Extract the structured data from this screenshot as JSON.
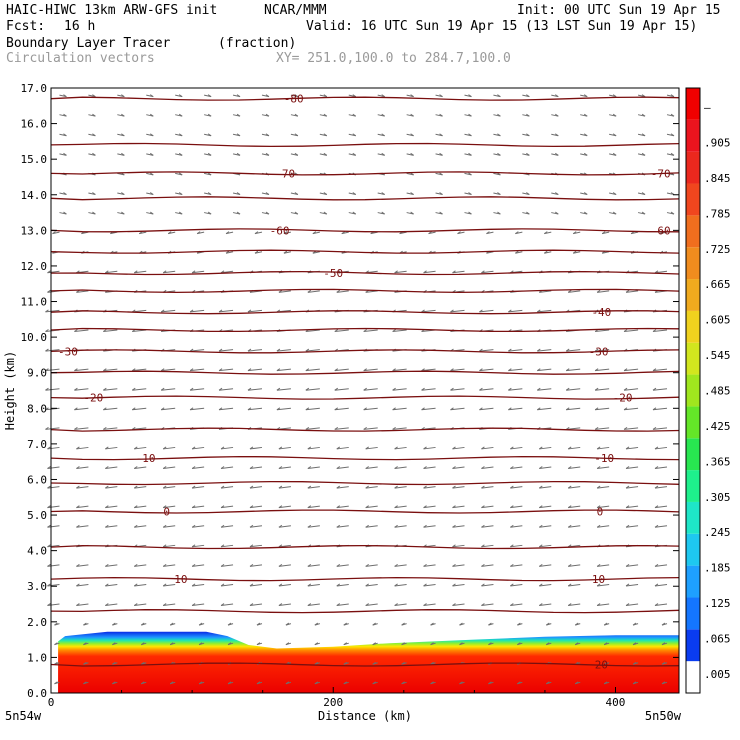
{
  "header": {
    "model": "HAIC-HIWC 13km ARW-GFS init",
    "org": "NCAR/MMM",
    "init": "Init: 00 UTC Sun 19 Apr 15",
    "fcst_label": "Fcst:",
    "fcst_value": "16 h",
    "valid": "Valid: 16 UTC Sun 19 Apr 15 (13 LST Sun 19 Apr 15)",
    "field_name": "Boundary Layer Tracer",
    "field_units": "(fraction)",
    "overlay": "Circulation vectors",
    "xy_range": "XY= 251.0,100.0 to 284.7,100.0"
  },
  "chart_data": {
    "type": "heatmap",
    "xlabel": "Distance (km)",
    "ylabel": "Height (km)",
    "xlim": [
      0,
      445
    ],
    "ylim": [
      0,
      17
    ],
    "x_ticks": [
      0,
      200,
      400
    ],
    "y_ticks": [
      "0.0",
      "1.0",
      "2.0",
      "3.0",
      "4.0",
      "5.0",
      "6.0",
      "7.0",
      "8.0",
      "9.0",
      "10.0",
      "11.0",
      "12.0",
      "13.0",
      "14.0",
      "15.0",
      "16.0",
      "17.0"
    ],
    "x_endpoint_labels": [
      "5n54w",
      "5n50w"
    ],
    "colorbar": {
      "labels": [
        ".005",
        ".065",
        ".125",
        ".185",
        ".245",
        ".305",
        ".365",
        ".425",
        ".485",
        ".545",
        ".605",
        ".665",
        ".725",
        ".785",
        ".845",
        ".905",
        "–"
      ],
      "colors": [
        "#ffffff",
        "#0a3cf0",
        "#1476ff",
        "#1ea0ff",
        "#1ec8f0",
        "#1ee6c8",
        "#1ef08c",
        "#28e650",
        "#64e628",
        "#a0e61e",
        "#d2e61e",
        "#f0d21e",
        "#f0aa1e",
        "#f08c1e",
        "#f06e1e",
        "#f0461e",
        "#eb281e",
        "#eb141e",
        "#f00000"
      ]
    },
    "tracer_boundary": [
      {
        "x": 5,
        "h": 1.45
      },
      {
        "x": 10,
        "h": 1.6
      },
      {
        "x": 40,
        "h": 1.72
      },
      {
        "x": 80,
        "h": 1.72
      },
      {
        "x": 110,
        "h": 1.72
      },
      {
        "x": 125,
        "h": 1.6
      },
      {
        "x": 140,
        "h": 1.35
      },
      {
        "x": 160,
        "h": 1.25
      },
      {
        "x": 200,
        "h": 1.3
      },
      {
        "x": 240,
        "h": 1.4
      },
      {
        "x": 300,
        "h": 1.5
      },
      {
        "x": 350,
        "h": 1.58
      },
      {
        "x": 400,
        "h": 1.62
      },
      {
        "x": 445,
        "h": 1.62
      }
    ],
    "isotherms": [
      {
        "label": "-80",
        "h": 16.7,
        "label_x": 172,
        "label2_x": null
      },
      {
        "label": "",
        "h": 15.4,
        "label_x": null,
        "label2_x": null
      },
      {
        "label": "-70",
        "h": 14.6,
        "label_x": 166,
        "label2_x": 432
      },
      {
        "label": "",
        "h": 13.9,
        "label_x": null,
        "label2_x": null
      },
      {
        "label": "-60",
        "h": 13.0,
        "label_x": 162,
        "label2_x": 432
      },
      {
        "label": "",
        "h": 12.4,
        "label_x": null,
        "label2_x": null
      },
      {
        "label": "-50",
        "h": 11.8,
        "label_x": 200,
        "label2_x": null
      },
      {
        "label": "",
        "h": 11.3,
        "label_x": null,
        "label2_x": null
      },
      {
        "label": "-40",
        "h": 10.7,
        "label_x": 390,
        "label2_x": null
      },
      {
        "label": "",
        "h": 10.2,
        "label_x": null,
        "label2_x": null
      },
      {
        "label": "-30",
        "h": 9.6,
        "label_x": 12,
        "label2_x": 388
      },
      {
        "label": "",
        "h": 9.0,
        "label_x": null,
        "label2_x": null
      },
      {
        "label": "-20",
        "h": 8.3,
        "label_x": 30,
        "label2_x": 405
      },
      {
        "label": "",
        "h": 7.4,
        "label_x": null,
        "label2_x": null
      },
      {
        "label": "-10",
        "h": 6.6,
        "label_x": 67,
        "label2_x": 392
      },
      {
        "label": "",
        "h": 5.9,
        "label_x": null,
        "label2_x": null
      },
      {
        "label": "0",
        "h": 5.1,
        "label_x": 82,
        "label2_x": 389
      },
      {
        "label": "",
        "h": 4.1,
        "label_x": null,
        "label2_x": null
      },
      {
        "label": "10",
        "h": 3.2,
        "label_x": 92,
        "label2_x": 388
      },
      {
        "label": "",
        "h": 2.3,
        "label_x": null,
        "label2_x": null
      },
      {
        "label": "20",
        "h": 0.8,
        "label_x": 390,
        "label2_x": null
      }
    ]
  }
}
